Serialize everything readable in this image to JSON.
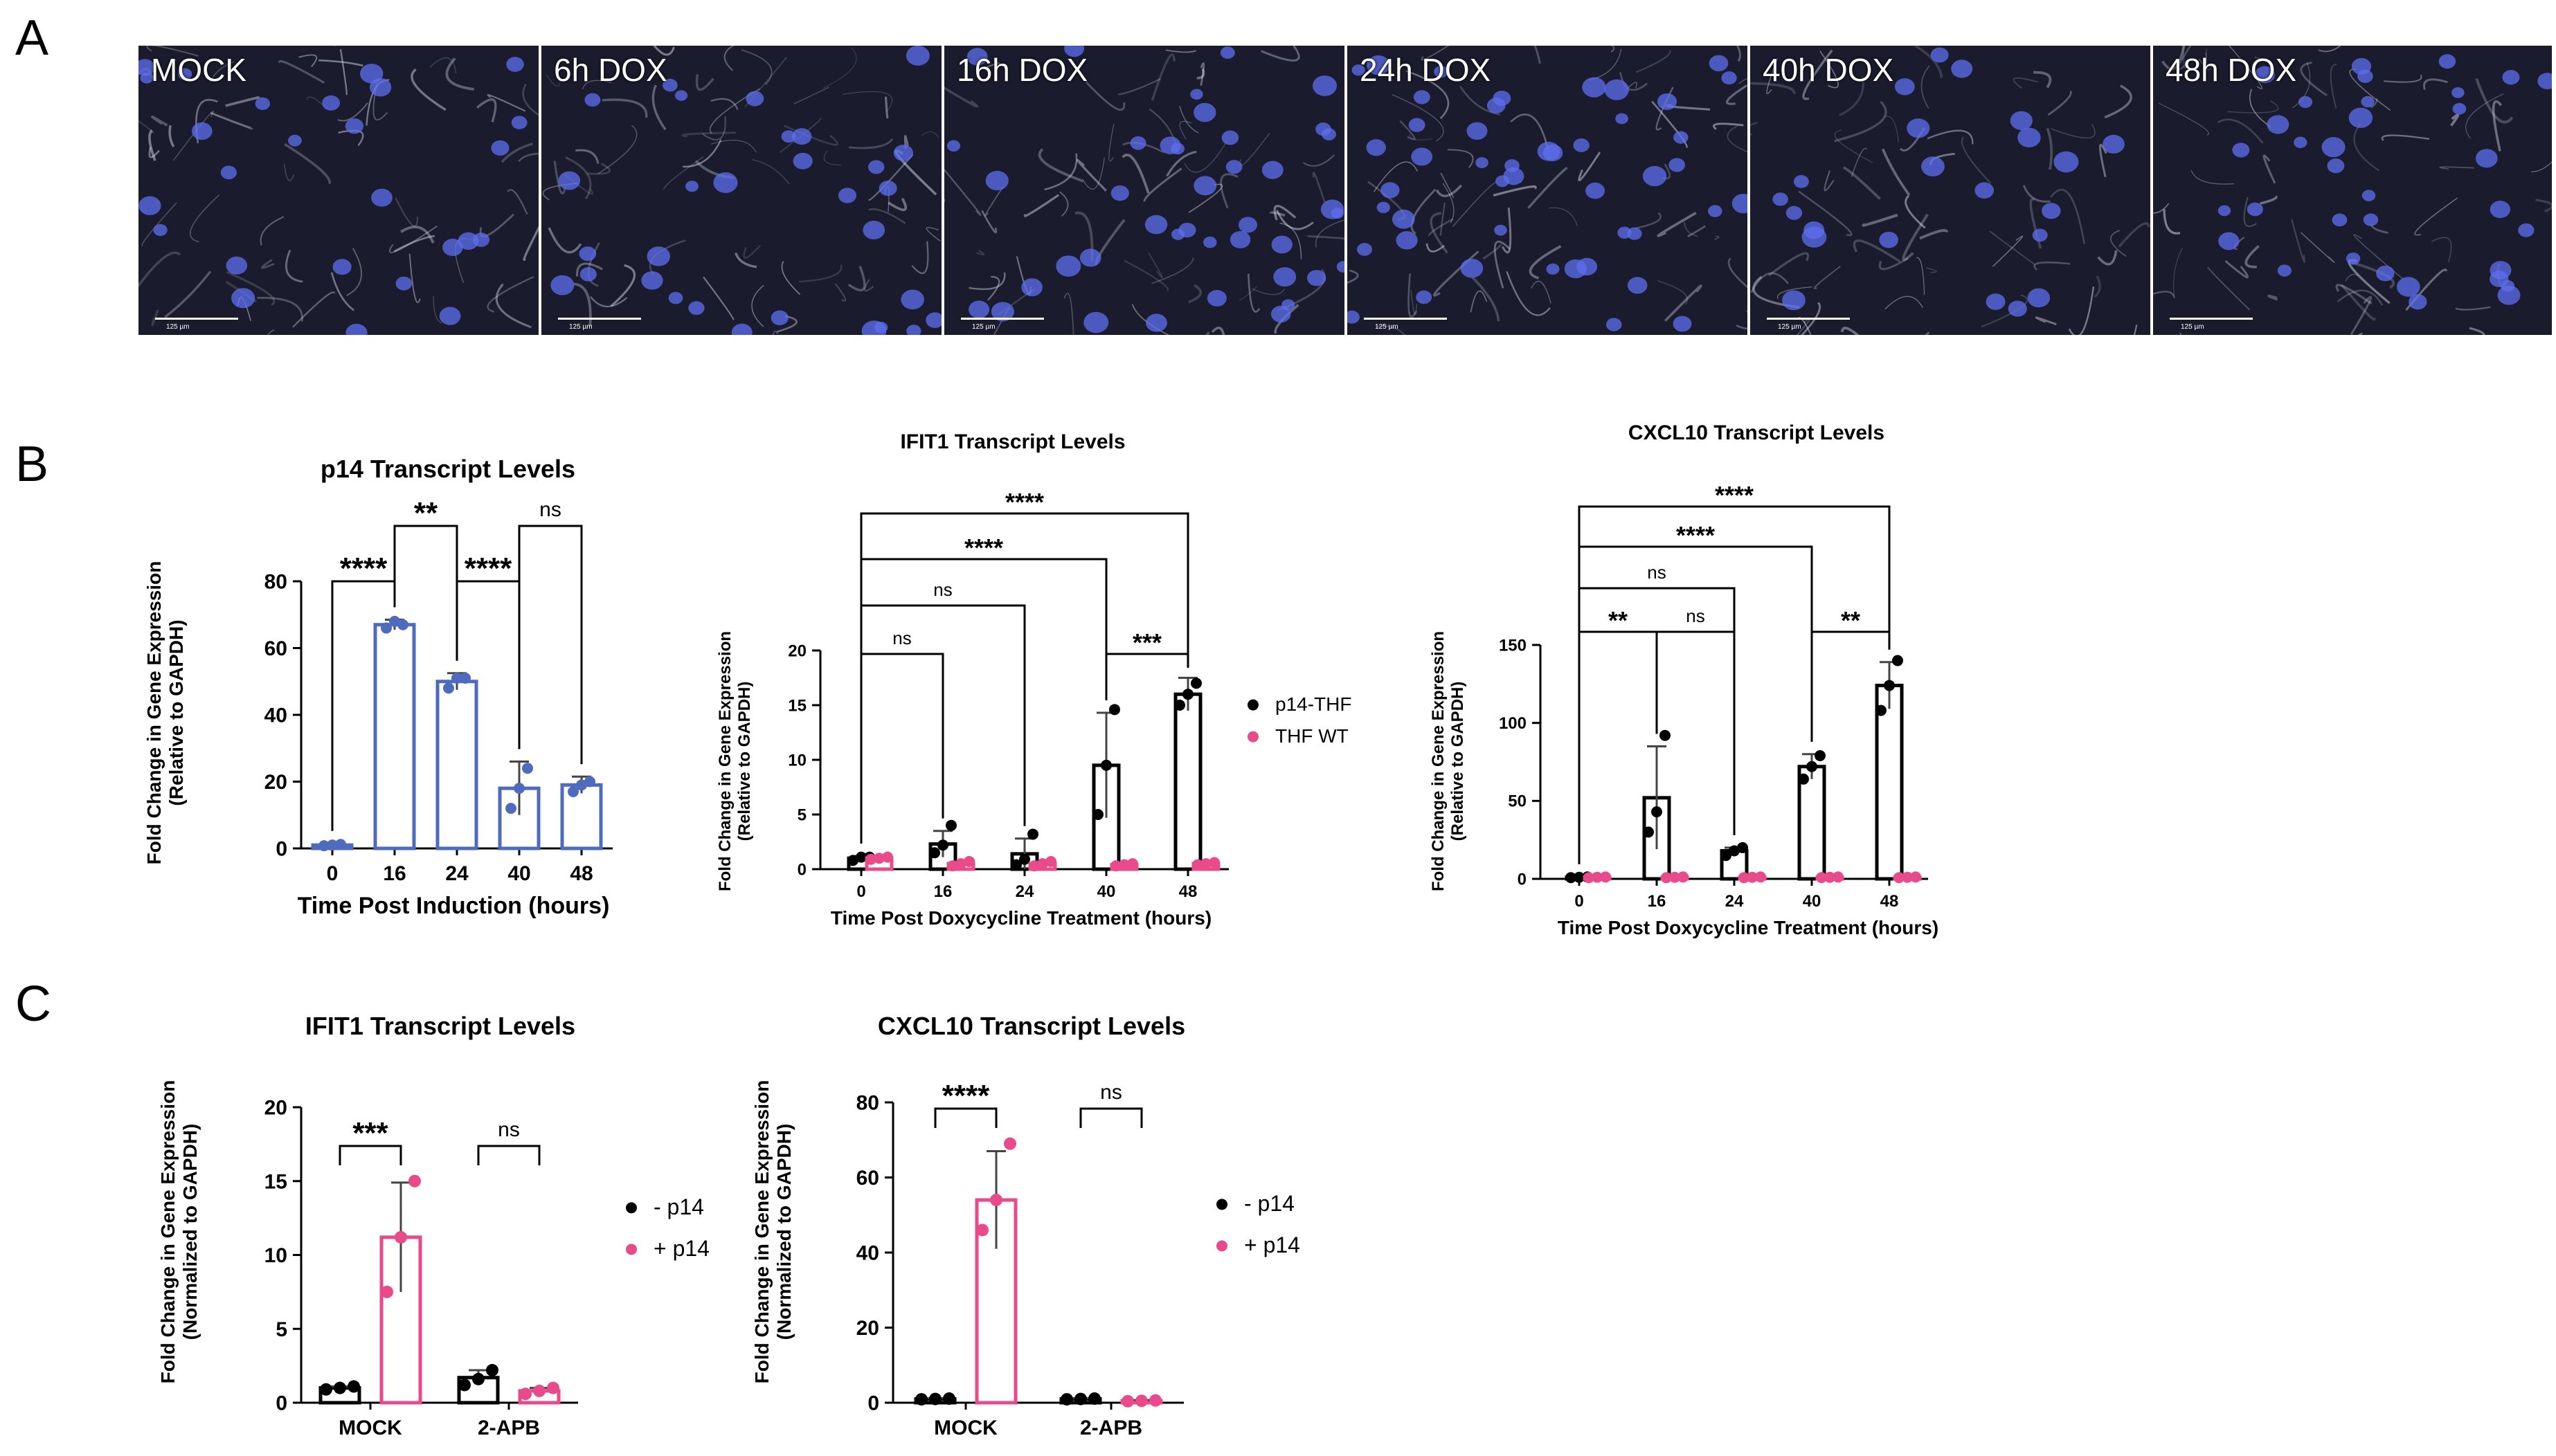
{
  "panel_labels": [
    "A",
    "B",
    "C"
  ],
  "micrographs": [
    {
      "label": "MOCK",
      "scale": "125 µm"
    },
    {
      "label": "6h DOX",
      "scale": "125 µm"
    },
    {
      "label": "16h DOX",
      "scale": "125 µm"
    },
    {
      "label": "24h DOX",
      "scale": "125 µm"
    },
    {
      "label": "40h DOX",
      "scale": "125 µm"
    },
    {
      "label": "48h DOX",
      "scale": "125 µm"
    }
  ],
  "colors": {
    "blue_bar": "#4f6bbd",
    "black_series": "#000000",
    "pink_series": "#e84a8a",
    "nuclei": "#5d6ff0"
  },
  "chart_data": [
    {
      "id": "p14",
      "type": "bar",
      "title": "p14 Transcript Levels",
      "xlabel": "Time Post Induction (hours)",
      "ylabel": [
        "Fold Change in Gene Expression",
        "(Relative to GAPDH)"
      ],
      "categories": [
        "0",
        "16",
        "24",
        "40",
        "48"
      ],
      "ylim": [
        0,
        80
      ],
      "yticks": [
        0,
        20,
        40,
        60,
        80
      ],
      "series": [
        {
          "values": [
            1,
            67,
            50,
            18,
            19
          ],
          "err": [
            0.5,
            1.5,
            2.5,
            8,
            2.5
          ],
          "points": [
            [
              0.8,
              1.0,
              1.2
            ],
            [
              66,
              68,
              67
            ],
            [
              48,
              51,
              51
            ],
            [
              12,
              18,
              24
            ],
            [
              17,
              19,
              20
            ]
          ]
        }
      ],
      "significance": [
        {
          "a": 0,
          "b": 1,
          "label": "****",
          "level": 1
        },
        {
          "a": 1,
          "b": 2,
          "label": "**",
          "level": 2
        },
        {
          "a": 2,
          "b": 3,
          "label": "****",
          "level": 1
        },
        {
          "a": 3,
          "b": 4,
          "label": "ns",
          "level": 2
        }
      ]
    },
    {
      "id": "ifit1_b",
      "type": "bar",
      "title": "IFIT1 Transcript Levels",
      "xlabel": "Time Post Doxycycline Treatment (hours)",
      "ylabel": [
        "Fold Change in Gene Expression",
        "(Relative to GAPDH)"
      ],
      "categories": [
        "0",
        "16",
        "24",
        "40",
        "48"
      ],
      "ylim": [
        0,
        20
      ],
      "yticks": [
        0,
        5,
        10,
        15,
        20
      ],
      "series": [
        {
          "name": "p14-THF",
          "values": [
            1,
            2.3,
            1.4,
            9.5,
            16
          ],
          "err": [
            0.2,
            1.2,
            1.4,
            4.8,
            1.5
          ],
          "points": [
            [
              0.8,
              1.1,
              1.1
            ],
            [
              1.5,
              2.2,
              4.0
            ],
            [
              0.4,
              0.9,
              3.2
            ],
            [
              5.0,
              9.5,
              14.6
            ],
            [
              15,
              16,
              17
            ]
          ]
        },
        {
          "name": "THF WT",
          "values": [
            1,
            0.5,
            0.5,
            0.4,
            0.5
          ],
          "err": [
            0.1,
            0.2,
            0.2,
            0.1,
            0.1
          ],
          "points": [
            [
              0.9,
              1.0,
              1.1
            ],
            [
              0.3,
              0.5,
              0.7
            ],
            [
              0.3,
              0.5,
              0.7
            ],
            [
              0.3,
              0.4,
              0.5
            ],
            [
              0.4,
              0.5,
              0.6
            ]
          ]
        }
      ],
      "significance": [
        {
          "a": 0,
          "b": 1,
          "label": "ns",
          "level": 1
        },
        {
          "a": 0,
          "b": 2,
          "label": "ns",
          "level": 2
        },
        {
          "a": 3,
          "b": 4,
          "label": "***",
          "level": 1
        },
        {
          "a": 0,
          "b": 3,
          "label": "****",
          "level": 3
        },
        {
          "a": 0,
          "b": 4,
          "label": "****",
          "level": 4
        }
      ],
      "legend": [
        "p14-THF",
        "THF WT"
      ]
    },
    {
      "id": "cxcl10_b",
      "type": "bar",
      "title": "CXCL10 Transcript Levels",
      "xlabel": "Time Post Doxycycline Treatment (hours)",
      "ylabel": [
        "Fold Change in Gene Expression",
        "(Relative to GAPDH)"
      ],
      "categories": [
        "0",
        "16",
        "24",
        "40",
        "48"
      ],
      "ylim": [
        0,
        150
      ],
      "yticks": [
        0,
        50,
        100,
        150
      ],
      "series": [
        {
          "name": "p14-THF",
          "values": [
            1,
            52,
            18,
            72,
            124
          ],
          "err": [
            0.5,
            33,
            2,
            8,
            15
          ],
          "points": [
            [
              0.8,
              1,
              1.2
            ],
            [
              30,
              43,
              92
            ],
            [
              15,
              18,
              20
            ],
            [
              64,
              72,
              79
            ],
            [
              108,
              124,
              140
            ]
          ]
        },
        {
          "name": "THF WT",
          "values": [
            1,
            1,
            1,
            1,
            1
          ],
          "err": [
            0.3,
            0.3,
            0.3,
            0.3,
            0.3
          ],
          "points": [
            [
              0.8,
              1,
              1.2
            ],
            [
              0.8,
              1,
              1.2
            ],
            [
              0.8,
              1,
              1.2
            ],
            [
              0.8,
              1,
              1.2
            ],
            [
              0.8,
              1,
              1.2
            ]
          ]
        }
      ],
      "significance": [
        {
          "a": 0,
          "b": 1,
          "label": "**",
          "level": 1
        },
        {
          "a": 1,
          "b": 2,
          "label": "ns",
          "level": 1
        },
        {
          "a": 3,
          "b": 4,
          "label": "**",
          "level": 1
        },
        {
          "a": 0,
          "b": 2,
          "label": "ns",
          "level": 2
        },
        {
          "a": 0,
          "b": 3,
          "label": "****",
          "level": 3
        },
        {
          "a": 0,
          "b": 4,
          "label": "****",
          "level": 4
        }
      ]
    },
    {
      "id": "ifit1_c",
      "type": "bar",
      "title": "IFIT1 Transcript Levels",
      "xlabel": "",
      "ylabel": [
        "Fold Change in Gene Expression",
        "(Normalized to GAPDH)"
      ],
      "categories": [
        "MOCK",
        "2-APB"
      ],
      "ylim": [
        0,
        20
      ],
      "yticks": [
        0,
        5,
        10,
        15,
        20
      ],
      "series": [
        {
          "name": "- p14",
          "values": [
            1,
            1.7
          ],
          "err": [
            0.1,
            0.5
          ],
          "points": [
            [
              0.9,
              1.0,
              1.1
            ],
            [
              1.2,
              1.6,
              2.2
            ]
          ]
        },
        {
          "name": "+ p14",
          "values": [
            11.2,
            0.8
          ],
          "err": [
            3.7,
            0.2
          ],
          "points": [
            [
              7.5,
              11.2,
              15.0
            ],
            [
              0.6,
              0.8,
              1.0
            ]
          ]
        }
      ],
      "significance": [
        {
          "g": 0,
          "label": "***"
        },
        {
          "g": 1,
          "label": "ns"
        }
      ],
      "legend": [
        "- p14",
        "+ p14"
      ]
    },
    {
      "id": "cxcl10_c",
      "type": "bar",
      "title": "CXCL10 Transcript Levels",
      "xlabel": "",
      "ylabel": [
        "Fold Change in Gene Expression",
        "(Normalized to GAPDH)"
      ],
      "categories": [
        "MOCK",
        "2-APB"
      ],
      "ylim": [
        0,
        80
      ],
      "yticks": [
        0,
        20,
        40,
        60,
        80
      ],
      "series": [
        {
          "name": "- p14",
          "values": [
            1,
            1
          ],
          "err": [
            0.2,
            0.2
          ],
          "points": [
            [
              0.9,
              1,
              1.1
            ],
            [
              0.9,
              1,
              1.1
            ]
          ]
        },
        {
          "name": "+ p14",
          "values": [
            54,
            0.5
          ],
          "err": [
            13,
            0.2
          ],
          "points": [
            [
              46,
              54,
              69
            ],
            [
              0.4,
              0.5,
              0.6
            ]
          ]
        }
      ],
      "significance": [
        {
          "g": 0,
          "label": "****"
        },
        {
          "g": 1,
          "label": "ns"
        }
      ],
      "legend": [
        "- p14",
        "+ p14"
      ]
    }
  ]
}
